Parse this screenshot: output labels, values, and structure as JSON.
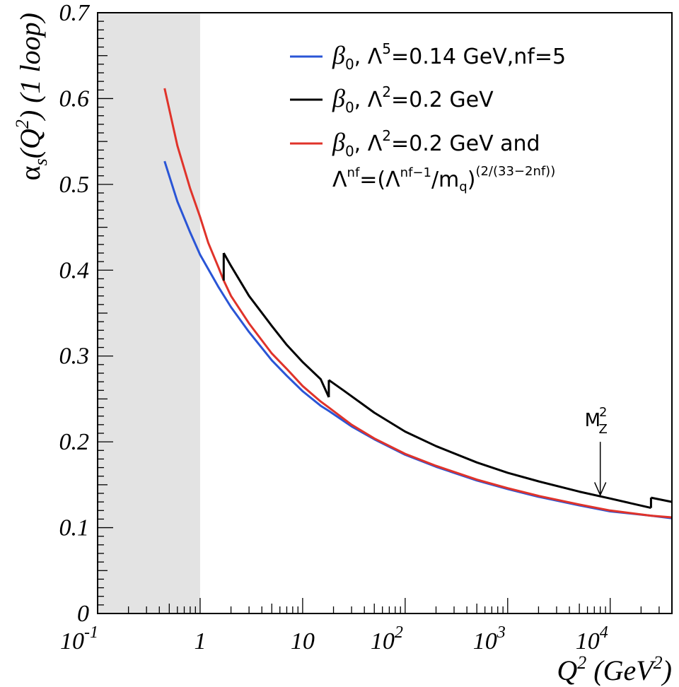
{
  "chart_data": {
    "type": "line",
    "x_scale": "log",
    "xlim": [
      0.1,
      40000
    ],
    "ylim": [
      0,
      0.7
    ],
    "shaded_region": {
      "x": [
        0.1,
        1
      ],
      "color": "#e3e3e3"
    },
    "x_ticks": [
      {
        "value": 0.1,
        "base": "10",
        "exp": "-1"
      },
      {
        "value": 1,
        "base": "1",
        "exp": ""
      },
      {
        "value": 10,
        "base": "10",
        "exp": ""
      },
      {
        "value": 100,
        "base": "10",
        "exp": "2"
      },
      {
        "value": 1000,
        "base": "10",
        "exp": "3"
      },
      {
        "value": 10000,
        "base": "10",
        "exp": "4"
      }
    ],
    "y_ticks": [
      0,
      0.1,
      0.2,
      0.3,
      0.4,
      0.5,
      0.6,
      0.7
    ],
    "y_tick_labels": [
      "0",
      "0.1",
      "0.2",
      "0.3",
      "0.4",
      "0.5",
      "0.6",
      "0.7"
    ],
    "xlabel": {
      "parts": [
        "Q",
        "2",
        " (GeV",
        "2",
        ")"
      ]
    },
    "ylabel": {
      "parts": [
        "α",
        "s",
        "(Q",
        "2",
        ") (1 loop)"
      ]
    },
    "series": [
      {
        "color": "#2a55d6",
        "legend": {
          "parts": [
            "β",
            "0",
            ", Λ",
            "5",
            "=0.14 GeV,nf=5"
          ]
        },
        "x": [
          0.45,
          0.6,
          0.8,
          1,
          1.5,
          2,
          3,
          5,
          7,
          10,
          15,
          18,
          30,
          50,
          100,
          200,
          500,
          1000,
          2000,
          5000,
          10000,
          25000,
          40000
        ],
        "y": [
          0.527,
          0.48,
          0.444,
          0.418,
          0.381,
          0.357,
          0.328,
          0.295,
          0.277,
          0.259,
          0.242,
          0.236,
          0.218,
          0.203,
          0.185,
          0.171,
          0.155,
          0.145,
          0.136,
          0.126,
          0.119,
          0.114,
          0.111
        ]
      },
      {
        "color": "#000000",
        "legend": {
          "parts": [
            "β",
            "0",
            ", Λ",
            "2",
            "=0.2 GeV"
          ]
        },
        "segments": [
          {
            "x": [
              1.7,
              2,
              3,
              5,
              7,
              10,
              15,
              18
            ],
            "y": [
              0.42,
              0.405,
              0.37,
              0.335,
              0.313,
              0.293,
              0.273,
              0.252
            ]
          },
          {
            "x": [
              18,
              25,
              50,
              100,
              200,
              500,
              1000,
              2000,
              5000,
              10000,
              25000
            ],
            "y": [
              0.272,
              0.26,
              0.234,
              0.212,
              0.195,
              0.176,
              0.164,
              0.154,
              0.142,
              0.134,
              0.123
            ]
          },
          {
            "x": [
              25000,
              40000
            ],
            "y": [
              0.135,
              0.13
            ]
          }
        ],
        "connectors": [
          {
            "x": [
              1.7,
              1.7
            ],
            "y": [
              0.388,
              0.42
            ]
          },
          {
            "x": [
              18,
              18
            ],
            "y": [
              0.252,
              0.272
            ]
          },
          {
            "x": [
              25000,
              25000
            ],
            "y": [
              0.123,
              0.135
            ]
          }
        ]
      },
      {
        "color": "#e0332a",
        "legend": {
          "parts": [
            "β",
            "0",
            ", Λ",
            "2",
            "=0.2 GeV and"
          ],
          "line2": [
            "Λ",
            "nf",
            "=(Λ",
            "nf−1",
            "/m",
            "q",
            ")",
            "(2/(33−2nf))"
          ]
        },
        "x": [
          0.45,
          0.6,
          0.8,
          1,
          1.2,
          1.5,
          1.7,
          2,
          3,
          5,
          7,
          10,
          15,
          18,
          30,
          50,
          100,
          200,
          500,
          1000,
          2000,
          5000,
          10000,
          25000,
          40000
        ],
        "y": [
          0.612,
          0.545,
          0.495,
          0.462,
          0.432,
          0.404,
          0.388,
          0.37,
          0.338,
          0.303,
          0.285,
          0.265,
          0.247,
          0.24,
          0.22,
          0.204,
          0.186,
          0.172,
          0.156,
          0.146,
          0.137,
          0.127,
          0.12,
          0.114,
          0.112
        ]
      }
    ],
    "annotation": {
      "text": "M",
      "sup": "2",
      "sub": "Z",
      "x": 8000,
      "y_from": 0.2,
      "y_to": 0.138
    }
  }
}
